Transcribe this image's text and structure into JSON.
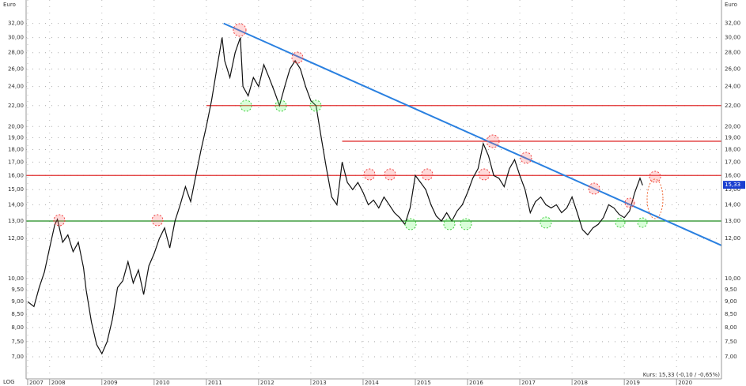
{
  "chart_data": {
    "type": "line",
    "y_unit": "Euro",
    "scale_label": "LOG",
    "footer_text": "Kurs: 15,33 (-0,10 / -0,65%)",
    "last_price": 15.33,
    "last_price_label": "15,33",
    "log_scale": true,
    "grid": true,
    "xlim": [
      2007.55,
      2020.86
    ],
    "ylim": [
      6.33,
      35.6
    ],
    "xticks": [
      {
        "value": 2007.58,
        "label": "2007"
      },
      2008,
      2009,
      2010,
      2011,
      2012,
      2013,
      2014,
      2015,
      2016,
      2017,
      2018,
      2019,
      2020
    ],
    "yticks": [
      {
        "value": 7,
        "label": "7,00"
      },
      {
        "value": 7.5,
        "label": "7,50"
      },
      {
        "value": 8,
        "label": "8,00"
      },
      {
        "value": 8.5,
        "label": "8,50"
      },
      {
        "value": 9,
        "label": "9,00"
      },
      {
        "value": 9.5,
        "label": "9,50"
      },
      {
        "value": 10,
        "label": "10,00"
      },
      {
        "value": 12,
        "label": "12,00"
      },
      {
        "value": 13,
        "label": "13,00"
      },
      {
        "value": 14,
        "label": "14,00"
      },
      {
        "value": 15,
        "label": "15,00"
      },
      {
        "value": 16,
        "label": "16,00"
      },
      {
        "value": 17,
        "label": "17,00"
      },
      {
        "value": 18,
        "label": "18,00"
      },
      {
        "value": 19,
        "label": "19,00"
      },
      {
        "value": 20,
        "label": "20,00"
      },
      {
        "value": 22,
        "label": "22,00"
      },
      {
        "value": 24,
        "label": "24,00"
      },
      {
        "value": 26,
        "label": "26,00"
      },
      {
        "value": 28,
        "label": "28,00"
      },
      {
        "value": 30,
        "label": "30,00"
      },
      {
        "value": 32,
        "label": "32,00"
      }
    ],
    "hlines": [
      {
        "value": 22,
        "color": "#e03030"
      },
      {
        "value": 18.7,
        "color": "#e03030"
      },
      {
        "value": 16,
        "color": "#e03030"
      },
      {
        "value": 13,
        "color": "#1a8a1a"
      }
    ],
    "trend_line": {
      "x": [
        2011.33,
        2020.86
      ],
      "values": [
        32,
        11.63
      ],
      "color": "#2a80e0"
    },
    "series": [
      {
        "color": "#111111",
        "x": [
          2007.58,
          2007.7,
          2007.8,
          2007.9,
          2008.0,
          2008.1,
          2008.15,
          2008.25,
          2008.35,
          2008.45,
          2008.55,
          2008.65,
          2008.7,
          2008.8,
          2008.9,
          2009.0,
          2009.1,
          2009.2,
          2009.3,
          2009.4,
          2009.5,
          2009.6,
          2009.7,
          2009.8,
          2009.9,
          2010.0,
          2010.1,
          2010.2,
          2010.3,
          2010.4,
          2010.5,
          2010.6,
          2010.7,
          2010.8,
          2010.9,
          2011.0,
          2011.1,
          2011.2,
          2011.3,
          2011.35,
          2011.45,
          2011.55,
          2011.65,
          2011.7,
          2011.8,
          2011.9,
          2012.0,
          2012.1,
          2012.2,
          2012.3,
          2012.4,
          2012.5,
          2012.6,
          2012.7,
          2012.8,
          2012.9,
          2013.0,
          2013.1,
          2013.2,
          2013.3,
          2013.4,
          2013.5,
          2013.6,
          2013.7,
          2013.8,
          2013.9,
          2014.0,
          2014.1,
          2014.2,
          2014.3,
          2014.4,
          2014.5,
          2014.6,
          2014.7,
          2014.8,
          2014.9,
          2015.0,
          2015.1,
          2015.2,
          2015.3,
          2015.4,
          2015.5,
          2015.6,
          2015.7,
          2015.8,
          2015.9,
          2016.0,
          2016.1,
          2016.2,
          2016.3,
          2016.4,
          2016.5,
          2016.6,
          2016.7,
          2016.8,
          2016.9,
          2017.0,
          2017.1,
          2017.2,
          2017.3,
          2017.4,
          2017.5,
          2017.6,
          2017.7,
          2017.8,
          2017.9,
          2018.0,
          2018.1,
          2018.2,
          2018.3,
          2018.4,
          2018.5,
          2018.6,
          2018.7,
          2018.8,
          2018.9,
          2019.0,
          2019.1,
          2019.2,
          2019.3,
          2019.35
        ],
        "values": [
          9.0,
          8.8,
          9.6,
          10.3,
          11.5,
          12.8,
          13.1,
          11.8,
          12.2,
          11.3,
          11.8,
          10.5,
          9.5,
          8.2,
          7.4,
          7.1,
          7.5,
          8.3,
          9.6,
          9.9,
          10.8,
          9.8,
          10.4,
          9.3,
          10.6,
          11.2,
          12.0,
          12.6,
          11.5,
          13.0,
          14.0,
          15.2,
          14.2,
          16.0,
          18.0,
          20.0,
          22.5,
          26.0,
          30.0,
          27.0,
          25.0,
          28.0,
          30.0,
          24.0,
          23.0,
          25.0,
          24.0,
          26.5,
          25.0,
          23.5,
          22.0,
          24.0,
          26.0,
          27.0,
          26.0,
          24.0,
          22.5,
          22.0,
          19.0,
          16.5,
          14.5,
          14.0,
          17.0,
          15.5,
          15.0,
          15.5,
          14.8,
          14.0,
          14.3,
          13.8,
          14.5,
          14.0,
          13.5,
          13.2,
          12.8,
          13.8,
          16.0,
          15.5,
          15.0,
          14.0,
          13.3,
          13.0,
          13.5,
          13.0,
          13.6,
          14.0,
          14.8,
          15.8,
          16.5,
          18.5,
          17.5,
          16.0,
          15.8,
          15.2,
          16.5,
          17.2,
          16.0,
          15.0,
          13.5,
          14.2,
          14.5,
          14.0,
          13.8,
          14.0,
          13.5,
          13.8,
          14.5,
          13.5,
          12.5,
          12.2,
          12.6,
          12.8,
          13.2,
          14.0,
          13.8,
          13.4,
          13.2,
          13.6,
          14.8,
          15.8,
          15.3
        ]
      }
    ]
  }
}
